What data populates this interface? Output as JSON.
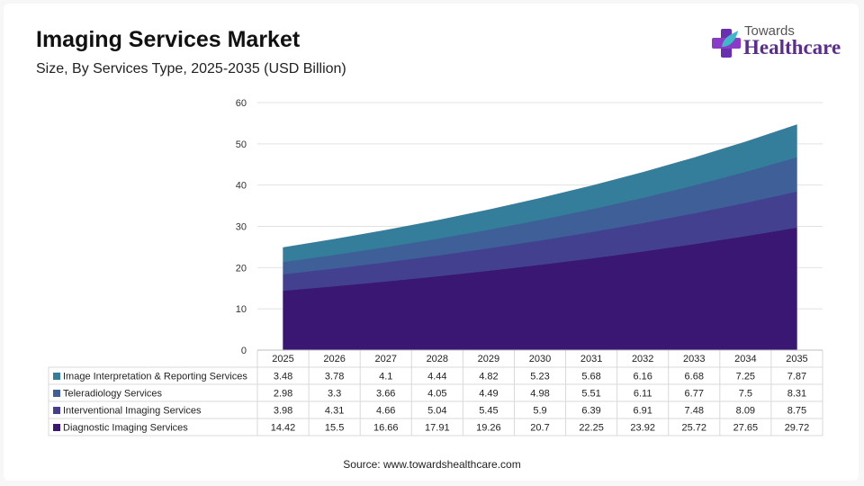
{
  "title": "Imaging Services Market",
  "subtitle": "Size, By Services Type, 2025-2035 (USD Billion)",
  "logo": {
    "line1": "Towards",
    "line2": "Healthcare"
  },
  "source": "Source: www.towardshealthcare.com",
  "chart_data": {
    "type": "area",
    "stacked": true,
    "x": [
      "2025",
      "2026",
      "2027",
      "2028",
      "2029",
      "2030",
      "2031",
      "2032",
      "2033",
      "2034",
      "2035"
    ],
    "ylim": [
      0,
      60
    ],
    "yticks": [
      0,
      10,
      20,
      30,
      40,
      50,
      60
    ],
    "series": [
      {
        "name": "Diagnostic Imaging Services",
        "color": "#3a1772",
        "values": [
          14.42,
          15.5,
          16.66,
          17.91,
          19.26,
          20.7,
          22.25,
          23.92,
          25.72,
          27.65,
          29.72
        ]
      },
      {
        "name": "Interventional Imaging Services",
        "color": "#43418f",
        "values": [
          3.98,
          4.31,
          4.66,
          5.04,
          5.45,
          5.9,
          6.39,
          6.91,
          7.48,
          8.09,
          8.75
        ]
      },
      {
        "name": "Teleradiology Services",
        "color": "#3e5f98",
        "values": [
          2.98,
          3.3,
          3.66,
          4.05,
          4.49,
          4.98,
          5.51,
          6.11,
          6.77,
          7.5,
          8.31
        ]
      },
      {
        "name": "Image Interpretation & Reporting Services",
        "color": "#347d9b",
        "values": [
          3.48,
          3.78,
          4.1,
          4.44,
          4.82,
          5.23,
          5.68,
          6.16,
          6.68,
          7.25,
          7.87
        ]
      }
    ],
    "table_order": [
      3,
      2,
      1,
      0
    ],
    "grid": true,
    "legend": "data-table"
  }
}
